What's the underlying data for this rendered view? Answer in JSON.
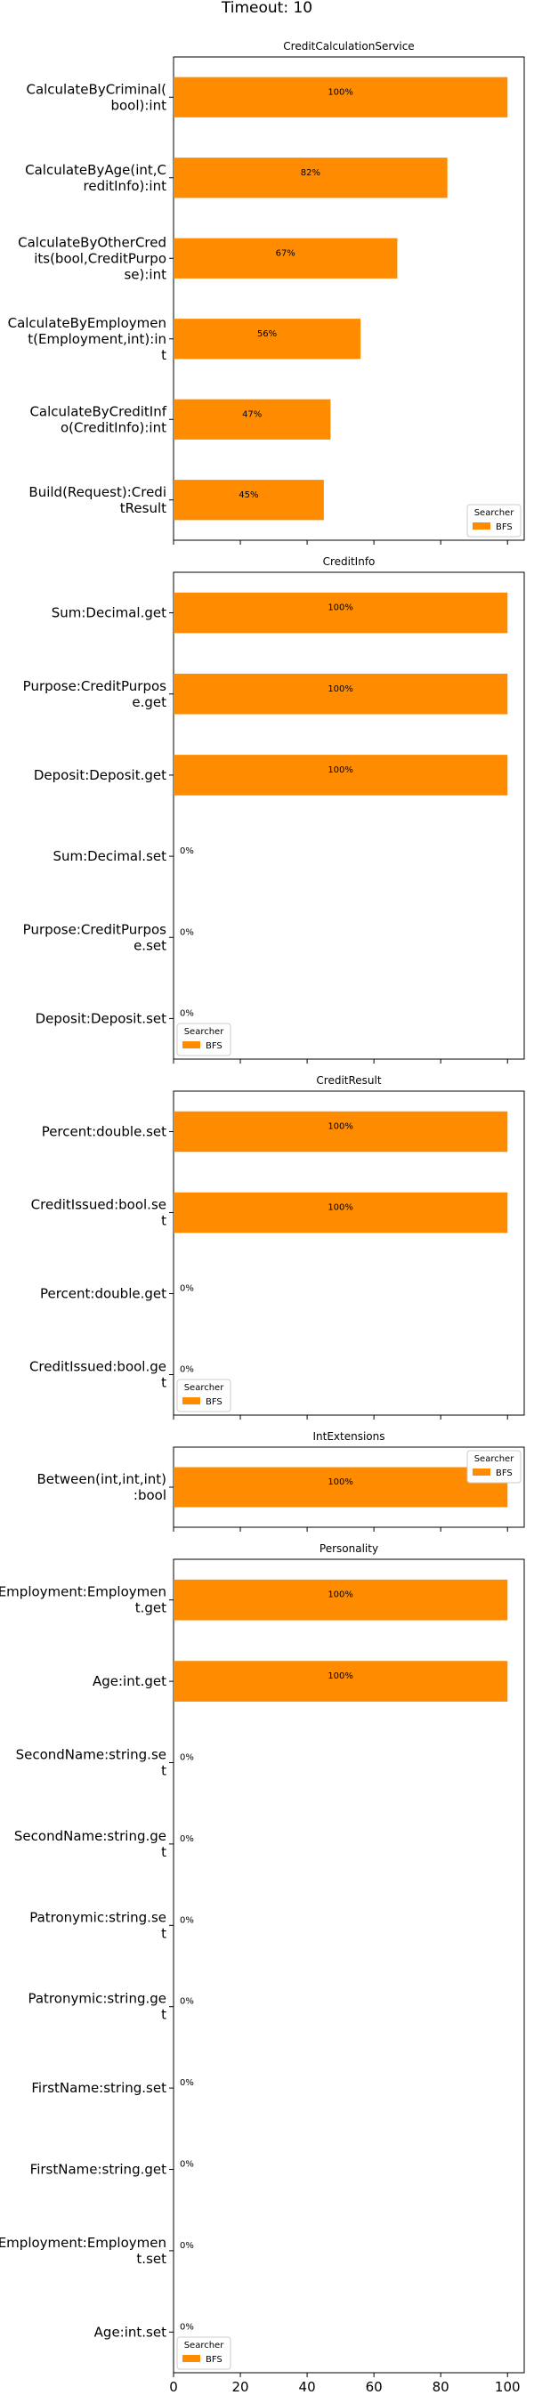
{
  "figure_title": "Timeout: 10",
  "legend_title": "Searcher",
  "legend_label": "BFS",
  "bar_color": "#ff8c00",
  "x_axis": {
    "ticks": [
      0,
      20,
      40,
      60,
      80,
      100
    ],
    "tick_labels": [
      "0",
      "20",
      "40",
      "60",
      "80",
      "100"
    ],
    "xlim": [
      0,
      105
    ]
  },
  "chart_data": [
    {
      "type": "bar",
      "orientation": "horizontal",
      "title": "CreditCalculationService",
      "categories": [
        [
          "CalculateByCriminal(",
          "bool):int"
        ],
        [
          "CalculateByAge(int,C",
          "reditInfo):int"
        ],
        [
          "CalculateByOtherCred",
          "its(bool,CreditPurpo",
          "se):int"
        ],
        [
          "CalculateByEmploymen",
          "t(Employment,int):in",
          "t"
        ],
        [
          "CalculateByCreditInf",
          "o(CreditInfo):int"
        ],
        [
          "Build(Request):Credi",
          "tResult"
        ]
      ],
      "values": [
        100,
        82,
        67,
        56,
        47,
        45
      ],
      "labels": [
        "100%",
        "82%",
        "67%",
        "56%",
        "47%",
        "45%"
      ],
      "series": [
        {
          "name": "BFS"
        }
      ],
      "legend_position": "lower right"
    },
    {
      "type": "bar",
      "orientation": "horizontal",
      "title": "CreditInfo",
      "categories": [
        [
          "Sum:Decimal.get"
        ],
        [
          "Purpose:CreditPurpos",
          "e.get"
        ],
        [
          "Deposit:Deposit.get"
        ],
        [
          "Sum:Decimal.set"
        ],
        [
          "Purpose:CreditPurpos",
          "e.set"
        ],
        [
          "Deposit:Deposit.set"
        ]
      ],
      "values": [
        100,
        100,
        100,
        0,
        0,
        0
      ],
      "labels": [
        "100%",
        "100%",
        "100%",
        "0%",
        "0%",
        "0%"
      ],
      "series": [
        {
          "name": "BFS"
        }
      ],
      "legend_position": "lower left"
    },
    {
      "type": "bar",
      "orientation": "horizontal",
      "title": "CreditResult",
      "categories": [
        [
          "Percent:double.set"
        ],
        [
          "CreditIssued:bool.se",
          "t"
        ],
        [
          "Percent:double.get"
        ],
        [
          "CreditIssued:bool.ge",
          "t"
        ]
      ],
      "values": [
        100,
        100,
        0,
        0
      ],
      "labels": [
        "100%",
        "100%",
        "0%",
        "0%"
      ],
      "series": [
        {
          "name": "BFS"
        }
      ],
      "legend_position": "lower left"
    },
    {
      "type": "bar",
      "orientation": "horizontal",
      "title": "IntExtensions",
      "categories": [
        [
          "Between(int,int,int)",
          ":bool"
        ]
      ],
      "values": [
        100
      ],
      "labels": [
        "100%"
      ],
      "series": [
        {
          "name": "BFS"
        }
      ],
      "legend_position": "upper right"
    },
    {
      "type": "bar",
      "orientation": "horizontal",
      "title": "Personality",
      "categories": [
        [
          "Employment:Employmen",
          "t.get"
        ],
        [
          "Age:int.get"
        ],
        [
          "SecondName:string.se",
          "t"
        ],
        [
          "SecondName:string.ge",
          "t"
        ],
        [
          "Patronymic:string.se",
          "t"
        ],
        [
          "Patronymic:string.ge",
          "t"
        ],
        [
          "FirstName:string.set"
        ],
        [
          "FirstName:string.get"
        ],
        [
          "Employment:Employmen",
          "t.set"
        ],
        [
          "Age:int.set"
        ]
      ],
      "values": [
        100,
        100,
        0,
        0,
        0,
        0,
        0,
        0,
        0,
        0
      ],
      "labels": [
        "100%",
        "100%",
        "0%",
        "0%",
        "0%",
        "0%",
        "0%",
        "0%",
        "0%",
        "0%"
      ],
      "series": [
        {
          "name": "BFS"
        }
      ],
      "legend_position": "lower left"
    }
  ]
}
